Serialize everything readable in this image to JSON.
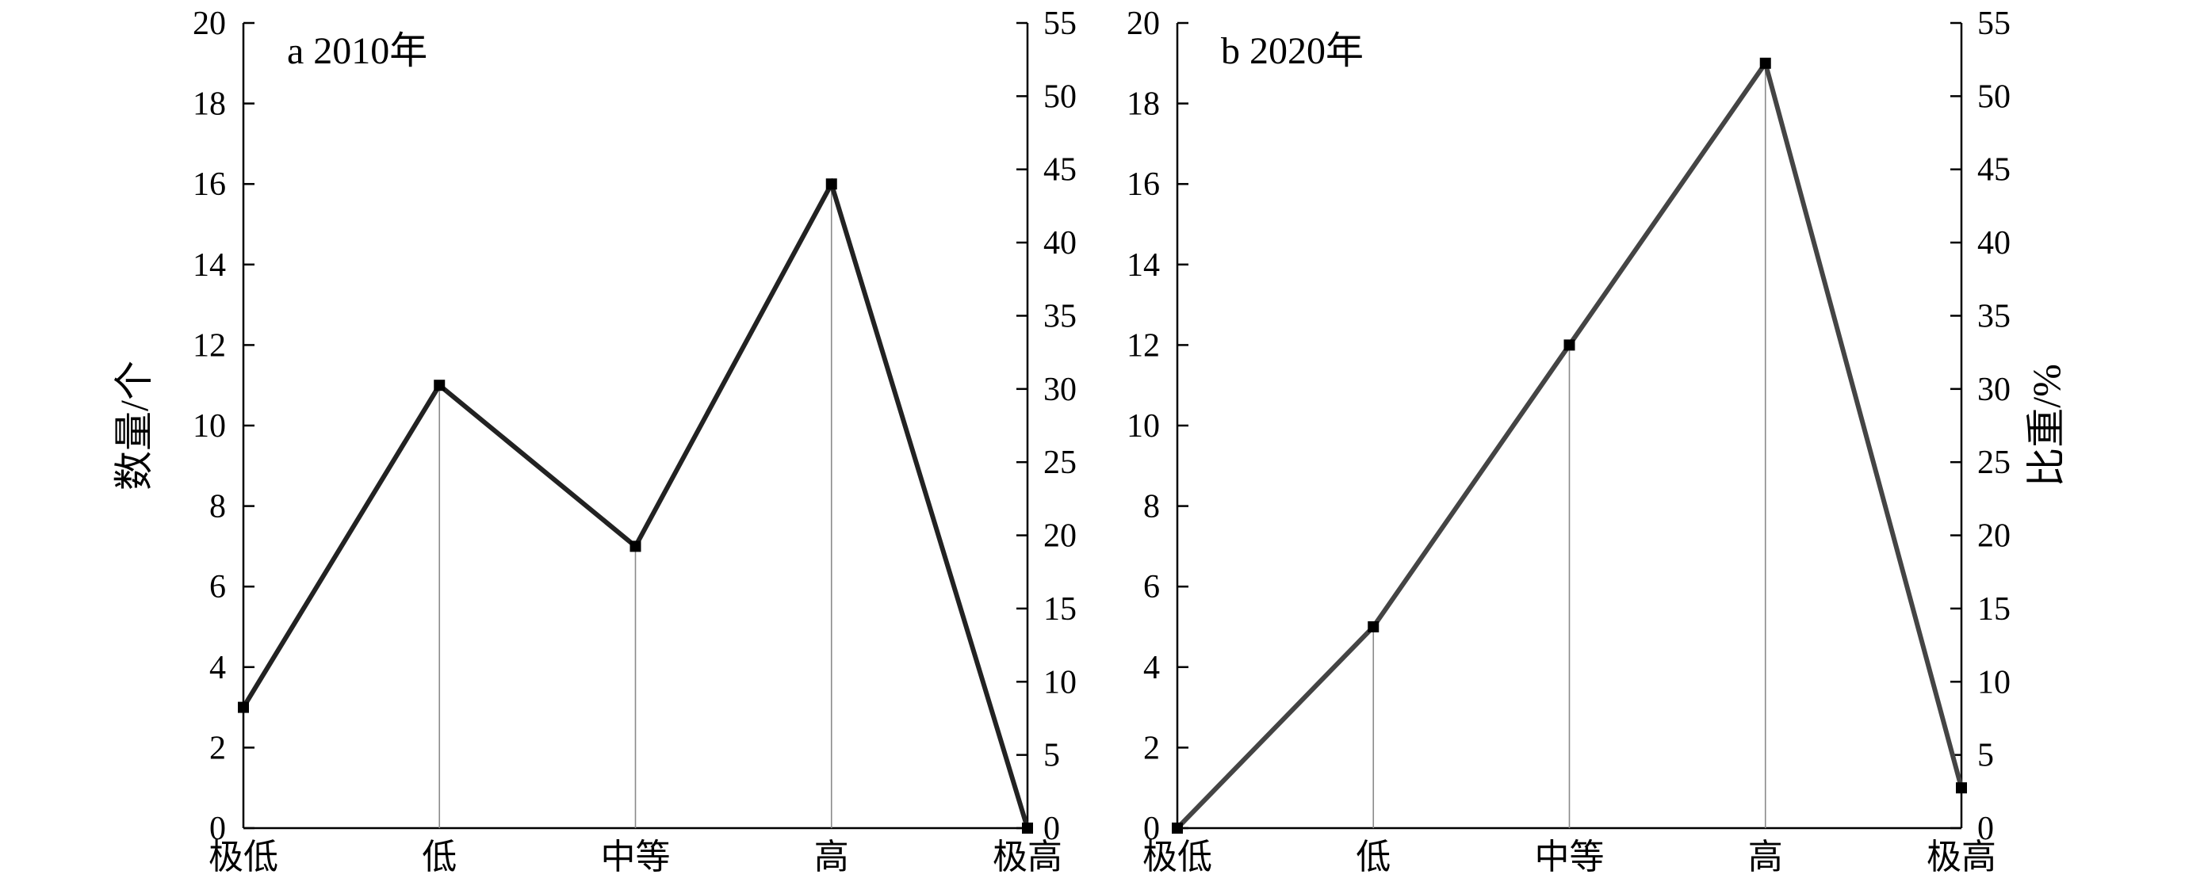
{
  "chart_data": [
    {
      "type": "line",
      "title": "a 2010年",
      "categories": [
        "极低",
        "低",
        "中等",
        "高",
        "极高"
      ],
      "series": [
        {
          "values": [
            3,
            11,
            7,
            16,
            0
          ]
        }
      ],
      "left_axis": {
        "label": "数量/个",
        "ylim": [
          0,
          20
        ],
        "ticks": [
          "0",
          "2",
          "4",
          "6",
          "8",
          "10",
          "12",
          "14",
          "16",
          "18",
          "20"
        ]
      },
      "right_axis": {
        "label": "",
        "ylim": [
          0,
          55
        ],
        "ticks": [
          "0",
          "5",
          "10",
          "15",
          "20",
          "25",
          "30",
          "35",
          "40",
          "45",
          "50",
          "55"
        ]
      },
      "line_color": "#222222",
      "grid": false
    },
    {
      "type": "line",
      "title": "b 2020年",
      "categories": [
        "极低",
        "低",
        "中等",
        "高",
        "极高"
      ],
      "series": [
        {
          "values": [
            0,
            5,
            12,
            19,
            1
          ]
        }
      ],
      "left_axis": {
        "label": "",
        "ylim": [
          0,
          20
        ],
        "ticks": [
          "0",
          "2",
          "4",
          "6",
          "8",
          "10",
          "12",
          "14",
          "16",
          "18",
          "20"
        ]
      },
      "right_axis": {
        "label": "比重/%",
        "ylim": [
          0,
          55
        ],
        "ticks": [
          "0",
          "5",
          "10",
          "15",
          "20",
          "25",
          "30",
          "35",
          "40",
          "45",
          "50",
          "55"
        ]
      },
      "line_color": "#444444",
      "grid": false
    }
  ]
}
